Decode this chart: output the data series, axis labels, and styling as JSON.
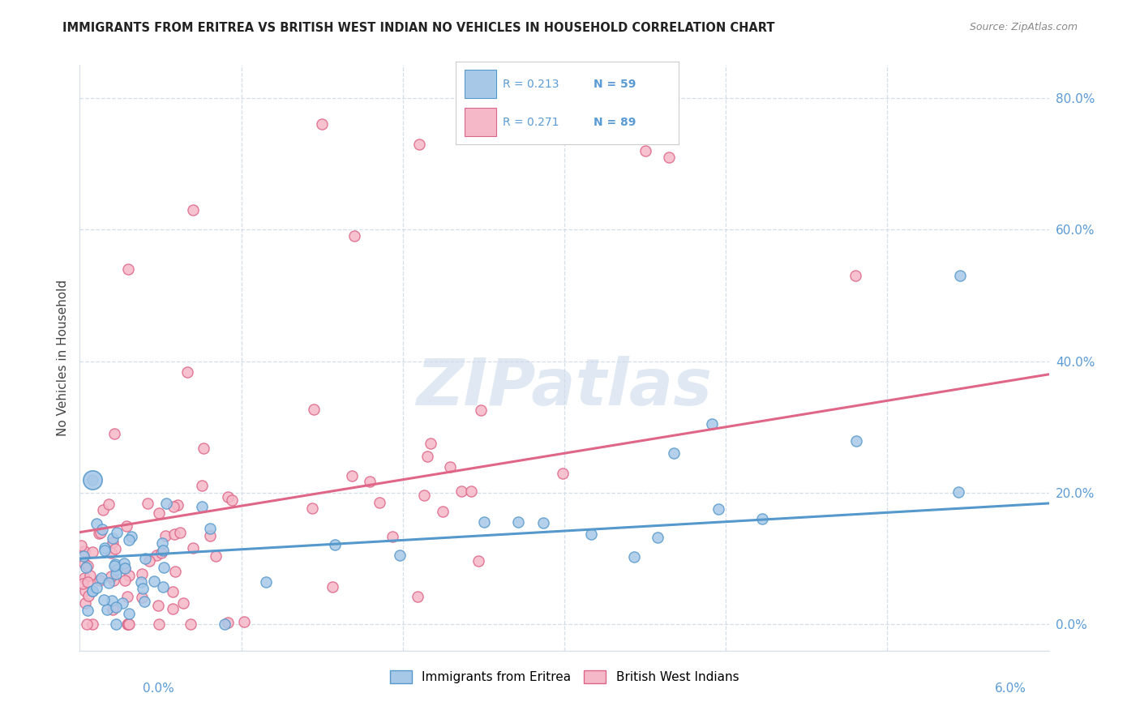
{
  "title": "IMMIGRANTS FROM ERITREA VS BRITISH WEST INDIAN NO VEHICLES IN HOUSEHOLD CORRELATION CHART",
  "source": "Source: ZipAtlas.com",
  "ylabel_label": "No Vehicles in Household",
  "xmin": 0.0,
  "xmax": 6.0,
  "ymin": -4.0,
  "ymax": 85.0,
  "yticks": [
    0,
    20,
    40,
    60,
    80
  ],
  "blue_color": "#a8c8e8",
  "pink_color": "#f5b8c8",
  "blue_edge_color": "#5599cc",
  "pink_edge_color": "#dd6688",
  "blue_line_color": "#5599cc",
  "pink_line_color": "#e06688",
  "watermark": "ZIPatlas",
  "legend_text_color": "#5b9bd5",
  "grid_color": "#d5dde8",
  "title_color": "#222222",
  "source_color": "#888888",
  "r_blue": 0.213,
  "n_blue": 59,
  "r_pink": 0.271,
  "n_pink": 89
}
